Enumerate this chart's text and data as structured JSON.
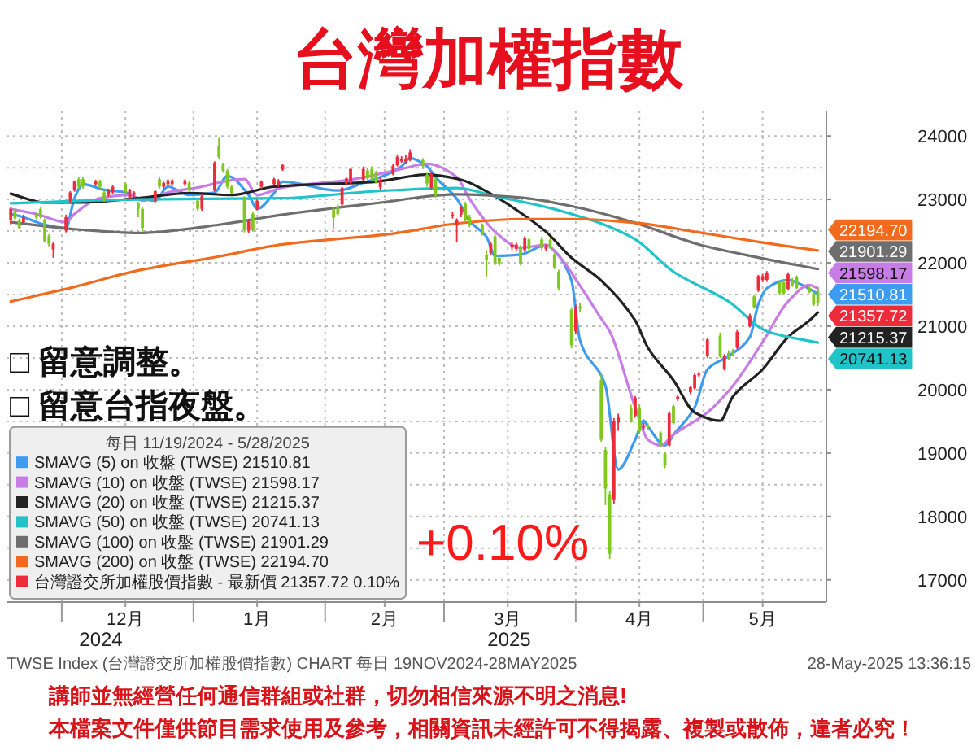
{
  "chart_data": {
    "type": "candlestick",
    "title": "台灣加權指數",
    "legend_title": "每日 11/19/2024 - 5/28/2025",
    "legend": "bottom left",
    "grid": true,
    "x": [
      "2024-11-19",
      "2024-11-20",
      "2024-11-21",
      "2024-11-22",
      "2024-11-25",
      "2024-11-26",
      "2024-11-27",
      "2024-11-28",
      "2024-11-29",
      "2024-12-02",
      "2024-12-03",
      "2024-12-04",
      "2024-12-05",
      "2024-12-06",
      "2024-12-09",
      "2024-12-10",
      "2024-12-11",
      "2024-12-12",
      "2024-12-13",
      "2024-12-16",
      "2024-12-17",
      "2024-12-18",
      "2024-12-19",
      "2024-12-20",
      "2024-12-23",
      "2024-12-24",
      "2024-12-25",
      "2024-12-26",
      "2024-12-27",
      "2024-12-30",
      "2024-12-31",
      "2025-01-02",
      "2025-01-03",
      "2025-01-06",
      "2025-01-07",
      "2025-01-08",
      "2025-01-09",
      "2025-01-10",
      "2025-01-13",
      "2025-01-14",
      "2025-01-15",
      "2025-01-16",
      "2025-01-17",
      "2025-01-20",
      "2025-01-21",
      "2025-01-22",
      "2025-02-03",
      "2025-02-04",
      "2025-02-05",
      "2025-02-06",
      "2025-02-07",
      "2025-02-10",
      "2025-02-11",
      "2025-02-12",
      "2025-02-13",
      "2025-02-14",
      "2025-02-17",
      "2025-02-18",
      "2025-02-19",
      "2025-02-20",
      "2025-02-21",
      "2025-02-24",
      "2025-02-25",
      "2025-02-26",
      "2025-02-27",
      "2025-03-03",
      "2025-03-04",
      "2025-03-05",
      "2025-03-06",
      "2025-03-07",
      "2025-03-10",
      "2025-03-11",
      "2025-03-12",
      "2025-03-13",
      "2025-03-14",
      "2025-03-17",
      "2025-03-18",
      "2025-03-19",
      "2025-03-20",
      "2025-03-21",
      "2025-03-24",
      "2025-03-25",
      "2025-03-26",
      "2025-03-27",
      "2025-03-28",
      "2025-03-31",
      "2025-04-01",
      "2025-04-02",
      "2025-04-07",
      "2025-04-08",
      "2025-04-09",
      "2025-04-10",
      "2025-04-11",
      "2025-04-14",
      "2025-04-15",
      "2025-04-16",
      "2025-04-17",
      "2025-04-18",
      "2025-04-21",
      "2025-04-22",
      "2025-04-23",
      "2025-04-24",
      "2025-04-25",
      "2025-04-28",
      "2025-04-29",
      "2025-04-30",
      "2025-05-02",
      "2025-05-05",
      "2025-05-06",
      "2025-05-07",
      "2025-05-08",
      "2025-05-09",
      "2025-05-12",
      "2025-05-13",
      "2025-05-14",
      "2025-05-15",
      "2025-05-16",
      "2025-05-19",
      "2025-05-20",
      "2025-05-21",
      "2025-05-22",
      "2025-05-23",
      "2025-05-26",
      "2025-05-27",
      "2025-05-28"
    ],
    "xlim": [
      "2024-11-18",
      "2025-05-30"
    ],
    "xticks": [
      {
        "value": "2024-12-01",
        "label": null
      },
      {
        "value": "2024-12-16",
        "label": "12月"
      },
      {
        "value": "2025-01-01",
        "label": null
      },
      {
        "value": "2025-01-16",
        "label": "1月"
      },
      {
        "value": "2025-02-01",
        "label": null
      },
      {
        "value": "2025-02-15",
        "label": "2月"
      },
      {
        "value": "2025-03-01",
        "label": null
      },
      {
        "value": "2025-03-16",
        "label": "3月"
      },
      {
        "value": "2025-04-01",
        "label": null
      },
      {
        "value": "2025-04-16",
        "label": "4月"
      },
      {
        "value": "2025-05-01",
        "label": null
      },
      {
        "value": "2025-05-15",
        "label": "5月"
      }
    ],
    "ylim": [
      16650,
      24400
    ],
    "yticks": [
      17000,
      {
        "value": 17500,
        "label": null
      },
      18000,
      {
        "value": 18500,
        "label": null
      },
      19000,
      {
        "value": 19500,
        "label": null
      },
      20000,
      {
        "value": 20500,
        "label": null
      },
      21000,
      {
        "value": 21500,
        "label": null
      },
      22000,
      {
        "value": 22500,
        "label": null
      },
      23000,
      {
        "value": 23500,
        "label": null
      },
      24000
    ],
    "series": [
      {
        "type": "line",
        "name": "SMAVG (5) on 收盤 (TWSE) 21510.81",
        "color": "#3d9cf0",
        "x": [
          "2024-11-19",
          "2024-11-22",
          "2024-11-27",
          "2024-12-02",
          "2024-12-04",
          "2024-12-06",
          "2024-12-11",
          "2024-12-16",
          "2024-12-19",
          "2024-12-23",
          "2024-12-26",
          "2024-12-31",
          "2025-01-06",
          "2025-01-09",
          "2025-01-14",
          "2025-01-16",
          "2025-01-20",
          "2025-01-22",
          "2025-02-04",
          "2025-02-10",
          "2025-02-14",
          "2025-02-19",
          "2025-02-21",
          "2025-02-25",
          "2025-02-27",
          "2025-03-04",
          "2025-03-07",
          "2025-03-11",
          "2025-03-13",
          "2025-03-19",
          "2025-03-25",
          "2025-03-27",
          "2025-03-31",
          "2025-04-02",
          "2025-04-08",
          "2025-04-11",
          "2025-04-15",
          "2025-04-17",
          "2025-04-18",
          "2025-04-22",
          "2025-04-24",
          "2025-04-29",
          "2025-05-02",
          "2025-05-07",
          "2025-05-12",
          "2025-05-14",
          "2025-05-16",
          "2025-05-21",
          "2025-05-23",
          "2025-05-28"
        ],
        "values": [
          22770,
          22720,
          22600,
          22550,
          23020,
          23240,
          23150,
          23110,
          23020,
          22980,
          23200,
          23070,
          23110,
          23370,
          23070,
          22850,
          23100,
          23280,
          23140,
          23260,
          23350,
          23520,
          23650,
          23520,
          23350,
          23010,
          22660,
          22410,
          22110,
          22130,
          22280,
          22190,
          21720,
          20780,
          20060,
          18740,
          19210,
          19510,
          19420,
          19120,
          19290,
          19720,
          20320,
          20530,
          20830,
          21350,
          21600,
          21730,
          21690,
          21510.81
        ],
        "value_labels": [
          null,
          null,
          null,
          null,
          null,
          null,
          null,
          null,
          null,
          null,
          null,
          null,
          null,
          null,
          null,
          null,
          null,
          null,
          null,
          null,
          null,
          null,
          null,
          null,
          null,
          null,
          null,
          null,
          null,
          null,
          null,
          null,
          null,
          null,
          null,
          null,
          null,
          null,
          null,
          null,
          null,
          null,
          null,
          null,
          null,
          null,
          null,
          null,
          null,
          "21510.81"
        ]
      },
      {
        "type": "line",
        "name": "SMAVG (10) on 收盤 (TWSE) 21598.17",
        "color": "#c77ce6",
        "x": [
          "2024-11-19",
          "2024-11-25",
          "2024-12-02",
          "2024-12-04",
          "2024-12-10",
          "2024-12-17",
          "2024-12-20",
          "2024-12-26",
          "2025-01-03",
          "2025-01-08",
          "2025-01-13",
          "2025-01-16",
          "2025-01-22",
          "2025-02-07",
          "2025-02-19",
          "2025-02-25",
          "2025-03-04",
          "2025-03-07",
          "2025-03-13",
          "2025-03-19",
          "2025-03-25",
          "2025-03-28",
          "2025-04-02",
          "2025-04-07",
          "2025-04-09",
          "2025-04-15",
          "2025-04-18",
          "2025-04-21",
          "2025-04-24",
          "2025-05-02",
          "2025-05-08",
          "2025-05-15",
          "2025-05-21",
          "2025-05-26",
          "2025-05-28"
        ],
        "values": [
          22850,
          22770,
          22640,
          22770,
          23020,
          23070,
          22980,
          23110,
          23200,
          23280,
          23320,
          23070,
          23190,
          23310,
          23480,
          23560,
          23350,
          23010,
          22490,
          22240,
          22280,
          22110,
          21640,
          21120,
          20920,
          19720,
          19210,
          19120,
          19290,
          19640,
          20060,
          20750,
          21390,
          21650,
          21598.17
        ],
        "value_labels": [
          null,
          null,
          null,
          null,
          null,
          null,
          null,
          null,
          null,
          null,
          null,
          null,
          null,
          null,
          null,
          null,
          null,
          null,
          null,
          null,
          null,
          null,
          null,
          null,
          null,
          null,
          null,
          null,
          null,
          null,
          null,
          null,
          null,
          null,
          "21598.17"
        ]
      },
      {
        "type": "line",
        "name": "SMAVG (20) on 收盤 (TWSE) 21215.37",
        "color": "#222222",
        "x": [
          "2024-11-19",
          "2024-11-27",
          "2024-12-05",
          "2024-12-19",
          "2024-12-31",
          "2025-01-10",
          "2025-01-20",
          "2025-02-13",
          "2025-02-25",
          "2025-03-05",
          "2025-03-12",
          "2025-03-19",
          "2025-03-25",
          "2025-03-31",
          "2025-04-07",
          "2025-04-15",
          "2025-04-18",
          "2025-04-24",
          "2025-04-29",
          "2025-05-05",
          "2025-05-08",
          "2025-05-15",
          "2025-05-21",
          "2025-05-26",
          "2025-05-28"
        ],
        "values": [
          23090,
          22950,
          22950,
          23020,
          23100,
          23070,
          23200,
          23280,
          23390,
          23310,
          23090,
          22790,
          22490,
          22080,
          21720,
          21090,
          20660,
          20150,
          19640,
          19510,
          19890,
          20320,
          20830,
          21090,
          21215.37
        ],
        "value_labels": [
          null,
          null,
          null,
          null,
          null,
          null,
          null,
          null,
          null,
          null,
          null,
          null,
          null,
          null,
          null,
          null,
          null,
          null,
          null,
          null,
          null,
          null,
          null,
          null,
          "21215.37"
        ]
      },
      {
        "type": "line",
        "name": "SMAVG (50) on 收盤 (TWSE) 20741.13",
        "color": "#1fc3c8",
        "x": [
          "2024-11-19",
          "2024-12-19",
          "2025-01-22",
          "2025-02-13",
          "2025-03-04",
          "2025-03-13",
          "2025-03-25",
          "2025-04-01",
          "2025-04-07",
          "2025-04-15",
          "2025-04-24",
          "2025-05-07",
          "2025-05-16",
          "2025-05-28"
        ],
        "values": [
          22940,
          23000,
          23020,
          23130,
          23180,
          23050,
          22880,
          22750,
          22620,
          22370,
          21860,
          21390,
          20920,
          20741.13
        ],
        "value_labels": [
          null,
          null,
          null,
          null,
          null,
          null,
          null,
          null,
          null,
          null,
          null,
          null,
          null,
          "20741.13"
        ]
      },
      {
        "type": "line",
        "name": "SMAVG (100) on 收盤 (TWSE) 21901.29",
        "color": "#6e6e6e",
        "x": [
          "2024-11-19",
          "2024-12-04",
          "2024-12-19",
          "2025-01-07",
          "2025-01-22",
          "2025-02-13",
          "2025-03-04",
          "2025-03-19",
          "2025-04-01",
          "2025-04-15",
          "2025-04-30",
          "2025-05-15",
          "2025-05-28"
        ],
        "values": [
          22640,
          22530,
          22470,
          22600,
          22760,
          22940,
          23080,
          23030,
          22880,
          22630,
          22290,
          22070,
          21901.29
        ],
        "value_labels": [
          null,
          null,
          null,
          null,
          null,
          null,
          null,
          null,
          null,
          null,
          null,
          null,
          "21901.29"
        ]
      },
      {
        "type": "line",
        "name": "SMAVG (200) on 收盤 (TWSE) 22194.70",
        "color": "#f26b1d",
        "x": [
          "2024-11-19",
          "2024-12-04",
          "2024-12-19",
          "2025-01-07",
          "2025-01-22",
          "2025-02-17",
          "2025-03-04",
          "2025-03-19",
          "2025-04-01",
          "2025-04-15",
          "2025-04-30",
          "2025-05-15",
          "2025-05-28"
        ],
        "values": [
          21390,
          21620,
          21880,
          22100,
          22290,
          22460,
          22620,
          22690,
          22690,
          22630,
          22480,
          22320,
          22194.7
        ],
        "value_labels": [
          null,
          null,
          null,
          null,
          null,
          null,
          null,
          null,
          null,
          null,
          null,
          null,
          "22194.70"
        ]
      },
      {
        "name": "台灣證交所加權股價指數 - 最新價 21357.72 0.10%",
        "color": "#ee2b3b",
        "ohlc": [
          [
            22680,
            22880,
            22600,
            22850
          ],
          [
            22820,
            22860,
            22680,
            22700
          ],
          [
            22680,
            22700,
            22530,
            22550
          ],
          [
            22640,
            22760,
            22620,
            22720
          ],
          [
            22760,
            22790,
            22690,
            22720
          ],
          [
            22850,
            22880,
            22700,
            22720
          ],
          [
            22680,
            22700,
            22320,
            22340
          ],
          [
            22420,
            22450,
            22260,
            22300
          ],
          [
            22210,
            22330,
            22080,
            22300
          ],
          [
            22510,
            22760,
            22480,
            22720
          ],
          [
            22980,
            23130,
            22950,
            23110
          ],
          [
            23150,
            23300,
            23120,
            23280
          ],
          [
            23320,
            23360,
            23170,
            23200
          ],
          [
            23320,
            23350,
            23170,
            23200
          ],
          [
            23240,
            23310,
            23210,
            23280
          ],
          [
            23280,
            23310,
            23170,
            23200
          ],
          [
            23110,
            23140,
            22960,
            22980
          ],
          [
            23070,
            23170,
            23040,
            23150
          ],
          [
            23110,
            23220,
            23080,
            23200
          ],
          [
            23240,
            23270,
            23090,
            23110
          ],
          [
            23020,
            23170,
            23000,
            23150
          ],
          [
            23070,
            23130,
            23040,
            23110
          ],
          [
            22940,
            22960,
            22720,
            22850
          ],
          [
            22850,
            22880,
            22500,
            22550
          ],
          [
            22980,
            23150,
            22950,
            23130
          ],
          [
            23320,
            23350,
            23170,
            23200
          ],
          [
            23200,
            23280,
            23170,
            23260
          ],
          [
            23240,
            23320,
            23210,
            23300
          ],
          [
            23240,
            23320,
            23210,
            23300
          ],
          [
            23240,
            23320,
            23210,
            23300
          ],
          [
            23260,
            23290,
            23130,
            23150
          ],
          [
            22980,
            23010,
            22820,
            22850
          ],
          [
            22850,
            23080,
            22820,
            23050
          ],
          [
            23150,
            23600,
            23130,
            23580
          ],
          [
            23840,
            23970,
            23640,
            23670
          ],
          [
            23550,
            23580,
            23420,
            23450
          ],
          [
            23450,
            23480,
            23170,
            23200
          ],
          [
            23200,
            23230,
            23080,
            23100
          ],
          [
            23020,
            23050,
            22480,
            22510
          ],
          [
            22510,
            22680,
            22470,
            22650
          ],
          [
            22770,
            22800,
            22490,
            22510
          ],
          [
            22850,
            23000,
            22830,
            22980
          ],
          [
            23200,
            23300,
            23170,
            23280
          ],
          [
            23240,
            23340,
            23220,
            23320
          ],
          [
            23230,
            23320,
            23200,
            23300
          ],
          [
            23470,
            23560,
            23450,
            23540
          ],
          [
            22850,
            22880,
            22540,
            22710
          ],
          [
            22880,
            22920,
            22740,
            22770
          ],
          [
            22920,
            23200,
            22900,
            23180
          ],
          [
            23250,
            23360,
            23220,
            23330
          ],
          [
            23260,
            23500,
            23240,
            23480
          ],
          [
            23310,
            23520,
            23290,
            23480
          ],
          [
            23460,
            23500,
            23300,
            23330
          ],
          [
            23480,
            23520,
            23300,
            23330
          ],
          [
            23420,
            23450,
            23250,
            23270
          ],
          [
            23190,
            23340,
            23150,
            23310
          ],
          [
            23400,
            23560,
            23380,
            23530
          ],
          [
            23540,
            23710,
            23520,
            23670
          ],
          [
            23600,
            23680,
            23580,
            23640
          ],
          [
            23600,
            23700,
            23560,
            23640
          ],
          [
            23620,
            23790,
            23600,
            23740
          ],
          [
            23620,
            23650,
            23480,
            23530
          ],
          [
            23390,
            23420,
            23200,
            23250
          ],
          [
            23190,
            23430,
            23150,
            23400
          ],
          [
            23320,
            23350,
            23030,
            23060
          ],
          [
            22740,
            22800,
            22700,
            22760
          ],
          [
            22590,
            22700,
            22330,
            22670
          ],
          [
            22760,
            22900,
            22720,
            22880
          ],
          [
            22930,
            22960,
            22650,
            22680
          ],
          [
            22720,
            22760,
            22560,
            22590
          ],
          [
            22590,
            22620,
            22430,
            22460
          ],
          [
            22130,
            22200,
            21780,
            22050
          ],
          [
            22160,
            22330,
            22120,
            22300
          ],
          [
            22420,
            22450,
            21960,
            21990
          ],
          [
            22080,
            22110,
            21950,
            21990
          ],
          [
            22240,
            22320,
            22200,
            22290
          ],
          [
            22220,
            22320,
            22180,
            22290
          ],
          [
            22250,
            22280,
            21960,
            21990
          ],
          [
            22200,
            22420,
            22170,
            22390
          ],
          [
            22370,
            22400,
            22190,
            22220
          ],
          [
            22370,
            22410,
            22200,
            22230
          ],
          [
            22220,
            22290,
            22190,
            22250
          ],
          [
            22360,
            22390,
            22220,
            22250
          ],
          [
            22130,
            22160,
            21900,
            21930
          ],
          [
            21860,
            21890,
            21560,
            21600
          ],
          [
            21260,
            21300,
            20650,
            20700
          ],
          [
            20920,
            21340,
            20880,
            21300
          ],
          [
            21310,
            21360,
            21230,
            21280
          ],
          [
            20150,
            20250,
            19180,
            19210
          ],
          [
            19050,
            19100,
            18180,
            18440
          ],
          [
            18350,
            18400,
            17330,
            17410
          ],
          [
            18270,
            19550,
            18200,
            19510
          ],
          [
            19480,
            19620,
            19350,
            19560
          ],
          [
            19700,
            19760,
            19480,
            19510
          ],
          [
            19590,
            19900,
            19560,
            19870
          ],
          [
            19720,
            19760,
            19300,
            19340
          ],
          [
            19400,
            19480,
            19360,
            19430
          ],
          [
            19430,
            19470,
            19370,
            19410
          ],
          [
            19320,
            19340,
            19100,
            19120
          ],
          [
            18990,
            19010,
            18760,
            18800
          ],
          [
            19120,
            19660,
            19100,
            19630
          ],
          [
            19740,
            19780,
            19450,
            19470
          ],
          [
            19850,
            19920,
            19820,
            19890
          ],
          [
            19960,
            20060,
            19930,
            20040
          ],
          [
            20020,
            20260,
            20000,
            20230
          ],
          [
            20230,
            20280,
            20200,
            20250
          ],
          [
            20530,
            20820,
            20500,
            20790
          ],
          [
            20850,
            20900,
            20500,
            20530
          ],
          [
            20320,
            20560,
            20300,
            20530
          ],
          [
            20580,
            20620,
            20470,
            20490
          ],
          [
            20600,
            20640,
            20530,
            20560
          ],
          [
            20660,
            20940,
            20640,
            20910
          ],
          [
            21000,
            21200,
            20980,
            21170
          ],
          [
            21470,
            21500,
            21280,
            21300
          ],
          [
            21560,
            21810,
            21540,
            21790
          ],
          [
            21730,
            21820,
            21700,
            21790
          ],
          [
            21730,
            21870,
            21700,
            21840
          ],
          [
            21690,
            21720,
            21500,
            21520
          ],
          [
            21690,
            21730,
            21500,
            21520
          ],
          [
            21590,
            21850,
            21560,
            21820
          ],
          [
            21730,
            21760,
            21620,
            21650
          ],
          [
            21770,
            21800,
            21590,
            21600
          ],
          [
            21600,
            21640,
            21520,
            21540
          ],
          [
            21520,
            21560,
            21320,
            21340
          ],
          [
            21560,
            21600,
            21320,
            21357.72
          ]
        ],
        "colors": [
          "#ee2b3b",
          "#7ec81f",
          "#7ec81f",
          "#ee2b3b",
          "#7ec81f",
          "#7ec81f",
          "#7ec81f",
          "#7ec81f",
          "#ee2b3b",
          "#ee2b3b",
          "#ee2b3b",
          "#ee2b3b",
          "#7ec81f",
          "#7ec81f",
          "#ee2b3b",
          "#7ec81f",
          "#7ec81f",
          "#ee2b3b",
          "#ee2b3b",
          "#7ec81f",
          "#ee2b3b",
          "#ee2b3b",
          "#7ec81f",
          "#7ec81f",
          "#ee2b3b",
          "#7ec81f",
          "#ee2b3b",
          "#ee2b3b",
          "#ee2b3b",
          "#ee2b3b",
          "#7ec81f",
          "#7ec81f",
          "#ee2b3b",
          "#ee2b3b",
          "#7ec81f",
          "#7ec81f",
          "#7ec81f",
          "#7ec81f",
          "#7ec81f",
          "#ee2b3b",
          "#7ec81f",
          "#ee2b3b",
          "#ee2b3b",
          "#ee2b3b",
          "#ee2b3b",
          "#ee2b3b",
          "#7ec81f",
          "#7ec81f",
          "#ee2b3b",
          "#ee2b3b",
          "#ee2b3b",
          "#ee2b3b",
          "#7ec81f",
          "#7ec81f",
          "#7ec81f",
          "#ee2b3b",
          "#ee2b3b",
          "#ee2b3b",
          "#ee2b3b",
          "#ee2b3b",
          "#ee2b3b",
          "#7ec81f",
          "#7ec81f",
          "#ee2b3b",
          "#7ec81f",
          "#ee2b3b",
          "#ee2b3b",
          "#ee2b3b",
          "#7ec81f",
          "#7ec81f",
          "#7ec81f",
          "#7ec81f",
          "#ee2b3b",
          "#7ec81f",
          "#7ec81f",
          "#ee2b3b",
          "#ee2b3b",
          "#7ec81f",
          "#ee2b3b",
          "#7ec81f",
          "#7ec81f",
          "#ee2b3b",
          "#7ec81f",
          "#7ec81f",
          "#7ec81f",
          "#7ec81f",
          "#ee2b3b",
          "#7ec81f",
          "#7ec81f",
          "#7ec81f",
          "#7ec81f",
          "#ee2b3b",
          "#ee2b3b",
          "#7ec81f",
          "#ee2b3b",
          "#7ec81f",
          "#ee2b3b",
          "#7ec81f",
          "#7ec81f",
          "#7ec81f",
          "#ee2b3b",
          "#7ec81f",
          "#ee2b3b",
          "#ee2b3b",
          "#ee2b3b",
          "#ee2b3b",
          "#ee2b3b",
          "#7ec81f",
          "#ee2b3b",
          "#7ec81f",
          "#7ec81f",
          "#ee2b3b",
          "#ee2b3b",
          "#7ec81f",
          "#ee2b3b",
          "#ee2b3b",
          "#ee2b3b",
          "#7ec81f",
          "#7ec81f",
          "#ee2b3b",
          "#7ec81f",
          "#7ec81f",
          "#7ec81f",
          "#7ec81f",
          "#7ec81f"
        ],
        "value_labels": [
          null,
          null,
          null,
          null,
          null,
          null,
          null,
          null,
          null,
          null,
          null,
          null,
          null,
          null,
          null,
          null,
          null,
          null,
          null,
          null,
          null,
          null,
          null,
          null,
          null,
          null,
          null,
          null,
          null,
          null,
          null,
          null,
          null,
          null,
          null,
          null,
          null,
          null,
          null,
          null,
          null,
          null,
          null,
          null,
          null,
          null,
          null,
          null,
          null,
          null,
          null,
          null,
          null,
          null,
          null,
          null,
          null,
          null,
          null,
          null,
          null,
          null,
          null,
          null,
          null,
          null,
          null,
          null,
          null,
          null,
          null,
          null,
          null,
          null,
          null,
          null,
          null,
          null,
          null,
          null,
          null,
          null,
          null,
          null,
          null,
          null,
          null,
          null,
          null,
          null,
          null,
          null,
          null,
          null,
          null,
          null,
          null,
          null,
          null,
          null,
          null,
          null,
          null,
          null,
          null,
          null,
          null,
          null,
          null,
          null,
          null,
          null,
          null,
          null,
          null,
          null,
          null,
          null,
          null,
          null,
          null,
          null,
          null,
          null,
          "21357.72"
        ]
      }
    ],
    "annotations": [
      "□ 留意調整。",
      "□ 留意台指夜盤。",
      "+0.10%",
      "2024",
      "2025",
      "TWSE Index (台灣證交所加權股價指數) CHART 每日 19NOV2024-28MAY2025",
      "28-May-2025 13:36:15",
      "講師並無經營任何通信群組或社群，切勿相信來源不明之消息!",
      "本檔案文件僅供節目需求使用及參考，相關資訊未經許可不得揭露、複製或散佈，違者必究！"
    ]
  }
}
